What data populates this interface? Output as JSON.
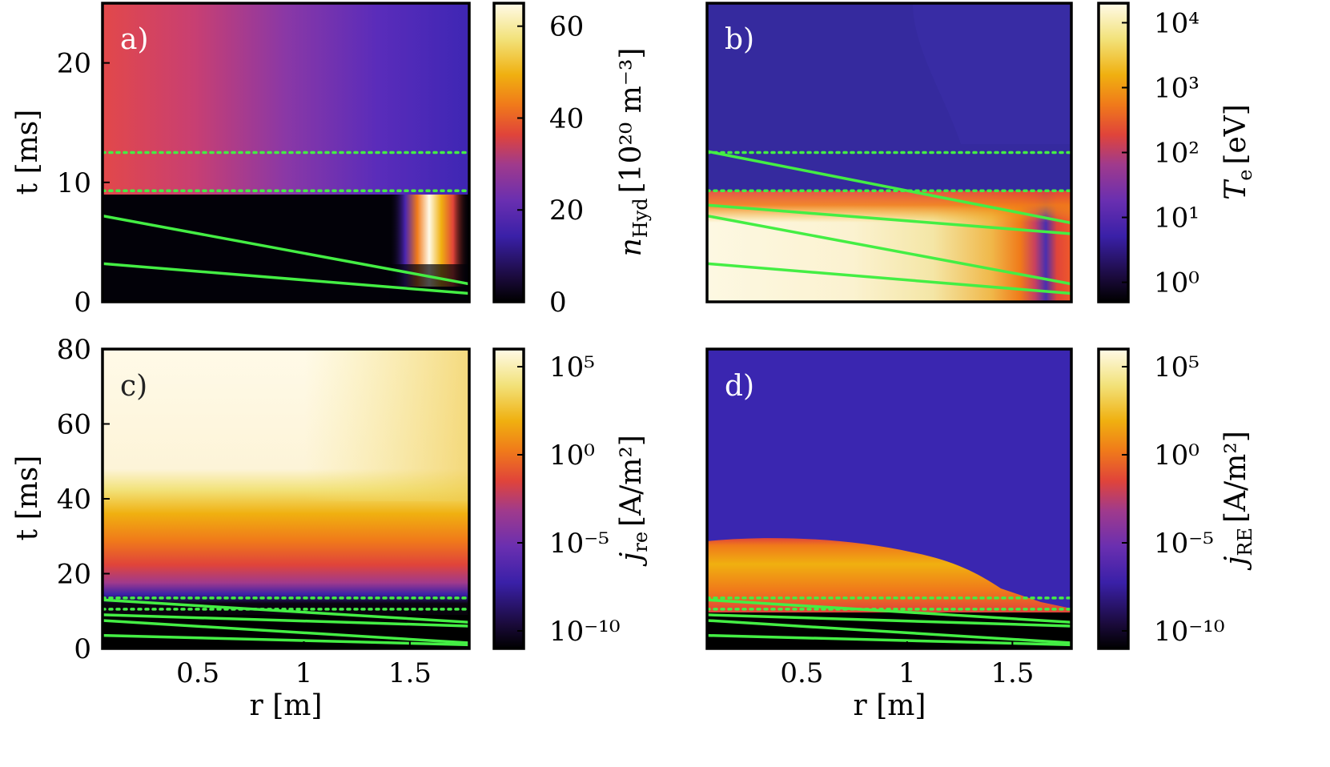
{
  "colors": {
    "overlay_line": "#44ee44",
    "colormap": [
      "#000000",
      "#1a0a3a",
      "#3a20a8",
      "#6a2fb0",
      "#a03a8c",
      "#e0443a",
      "#f07a1a",
      "#f0b010",
      "#f2e27a",
      "#fffae8"
    ]
  },
  "chart_data": [
    {
      "type": "heatmap",
      "panel": "a)",
      "xlabel": "",
      "ylabel": "t [ms]",
      "xlim": [
        0.05,
        1.78
      ],
      "ylim": [
        0,
        25
      ],
      "y_ticks": [
        "0",
        "10",
        "20"
      ],
      "y_tick_values": [
        0,
        10,
        20
      ],
      "x_ticks": [],
      "colorbar": {
        "label": "n_Hyd [10^20 m^-3]",
        "label_main": "n",
        "label_sub": "Hyd",
        "label_rest": "[10²⁰ m⁻³]",
        "scale": "linear",
        "range": [
          0,
          65
        ],
        "ticks": [
          "0",
          "20",
          "40",
          "60"
        ],
        "tick_values": [
          0,
          20,
          40,
          60
        ]
      },
      "dotted_lines_t": [
        9.3,
        12.5
      ],
      "green_lines": [
        {
          "r": [
            0.05,
            1.78
          ],
          "t": [
            7.2,
            1.5
          ]
        },
        {
          "r": [
            0.05,
            1.78
          ],
          "t": [
            3.2,
            0.7
          ]
        }
      ]
    },
    {
      "type": "heatmap",
      "panel": "b)",
      "xlabel": "",
      "ylabel": "",
      "xlim": [
        0.05,
        1.78
      ],
      "ylim": [
        0,
        25
      ],
      "y_ticks": [],
      "x_ticks": [],
      "colorbar": {
        "label": "T_e [eV]",
        "label_main": "T",
        "label_sub": "e",
        "label_rest": "[eV]",
        "scale": "log",
        "range": [
          0.5,
          20000
        ],
        "ticks": [
          "10⁰",
          "10¹",
          "10²",
          "10³",
          "10⁴"
        ],
        "tick_values": [
          1,
          10,
          100,
          1000,
          10000
        ]
      },
      "dotted_lines_t": [
        9.3,
        12.5
      ],
      "green_lines": [
        {
          "r": [
            0.05,
            1.78
          ],
          "t": [
            12.6,
            6.6
          ]
        },
        {
          "r": [
            0.05,
            1.78
          ],
          "t": [
            8.1,
            5.7
          ]
        },
        {
          "r": [
            0.05,
            1.78
          ],
          "t": [
            7.2,
            1.5
          ]
        },
        {
          "r": [
            0.05,
            1.78
          ],
          "t": [
            3.2,
            0.7
          ]
        }
      ]
    },
    {
      "type": "heatmap",
      "panel": "c)",
      "xlabel": "r [m]",
      "ylabel": "t [ms]",
      "xlim": [
        0.05,
        1.78
      ],
      "ylim": [
        0,
        80
      ],
      "y_ticks": [
        "0",
        "20",
        "40",
        "60",
        "80"
      ],
      "y_tick_values": [
        0,
        20,
        40,
        60,
        80
      ],
      "x_ticks": [
        "0.5",
        "1",
        "1.5"
      ],
      "x_tick_values": [
        0.5,
        1,
        1.5
      ],
      "colorbar": {
        "label": "j_re [A/m^2]",
        "label_main": "j",
        "label_sub": "re",
        "label_rest": "[A/m²]",
        "scale": "log",
        "range": [
          1e-11,
          1000000.0
        ],
        "ticks": [
          "10⁻¹⁰",
          "10⁻⁵",
          "10⁰",
          "10⁵"
        ],
        "tick_values": [
          1e-10,
          1e-05,
          1,
          100000.0
        ]
      },
      "dotted_lines_t": [
        10.5,
        13.5
      ],
      "green_lines": [
        {
          "r": [
            0.05,
            1.78
          ],
          "t": [
            13,
            7
          ]
        },
        {
          "r": [
            0.05,
            1.78
          ],
          "t": [
            9,
            6
          ]
        },
        {
          "r": [
            0.05,
            1.78
          ],
          "t": [
            7.5,
            1.5
          ]
        },
        {
          "r": [
            0.05,
            1.78
          ],
          "t": [
            3.5,
            1
          ]
        }
      ]
    },
    {
      "type": "heatmap",
      "panel": "d)",
      "xlabel": "r [m]",
      "ylabel": "",
      "xlim": [
        0.05,
        1.78
      ],
      "ylim": [
        0,
        80
      ],
      "y_ticks": [],
      "x_ticks": [
        "0.5",
        "1",
        "1.5"
      ],
      "x_tick_values": [
        0.5,
        1,
        1.5
      ],
      "colorbar": {
        "label": "j_RE [A/m^2]",
        "label_main": "j",
        "label_sub": "RE",
        "label_rest": "[A/m²]",
        "scale": "log",
        "range": [
          1e-11,
          1000000.0
        ],
        "ticks": [
          "10⁻¹⁰",
          "10⁻⁵",
          "10⁰",
          "10⁵"
        ],
        "tick_values": [
          1e-10,
          1e-05,
          1,
          100000.0
        ]
      },
      "dotted_lines_t": [
        10.5,
        13.5
      ],
      "green_lines": [
        {
          "r": [
            0.05,
            1.78
          ],
          "t": [
            13,
            7
          ]
        },
        {
          "r": [
            0.05,
            1.78
          ],
          "t": [
            9,
            6
          ]
        },
        {
          "r": [
            0.05,
            1.78
          ],
          "t": [
            7.5,
            1.5
          ]
        },
        {
          "r": [
            0.05,
            1.78
          ],
          "t": [
            3.5,
            1
          ]
        }
      ]
    }
  ]
}
